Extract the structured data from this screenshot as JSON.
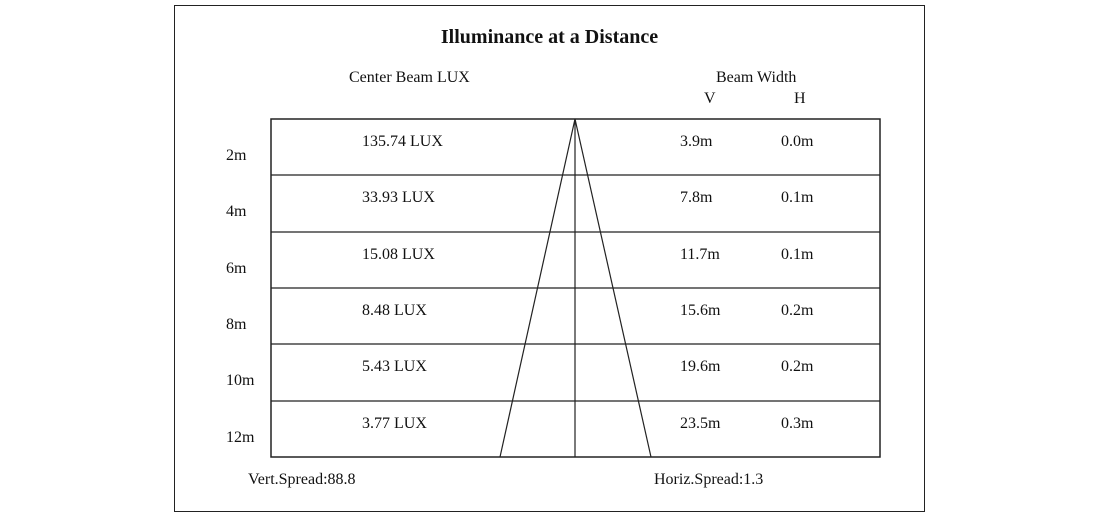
{
  "title": "Illuminance at a Distance",
  "headers": {
    "center_beam": "Center Beam LUX",
    "beam_width": "Beam Width",
    "v": "V",
    "h": "H"
  },
  "rows": [
    {
      "distance": "2m",
      "lux": "135.74 LUX",
      "v": "3.9m",
      "h": "0.0m"
    },
    {
      "distance": "4m",
      "lux": "33.93 LUX",
      "v": "7.8m",
      "h": "0.1m"
    },
    {
      "distance": "6m",
      "lux": "15.08 LUX",
      "v": "11.7m",
      "h": "0.1m"
    },
    {
      "distance": "8m",
      "lux": "8.48 LUX",
      "v": "15.6m",
      "h": "0.2m"
    },
    {
      "distance": "10m",
      "lux": "5.43 LUX",
      "v": "19.6m",
      "h": "0.2m"
    },
    {
      "distance": "12m",
      "lux": "3.77 LUX",
      "v": "23.5m",
      "h": "0.3m"
    }
  ],
  "footer": {
    "vert_spread": "Vert.Spread:88.8",
    "horiz_spread": "Horiz.Spread:1.3"
  }
}
